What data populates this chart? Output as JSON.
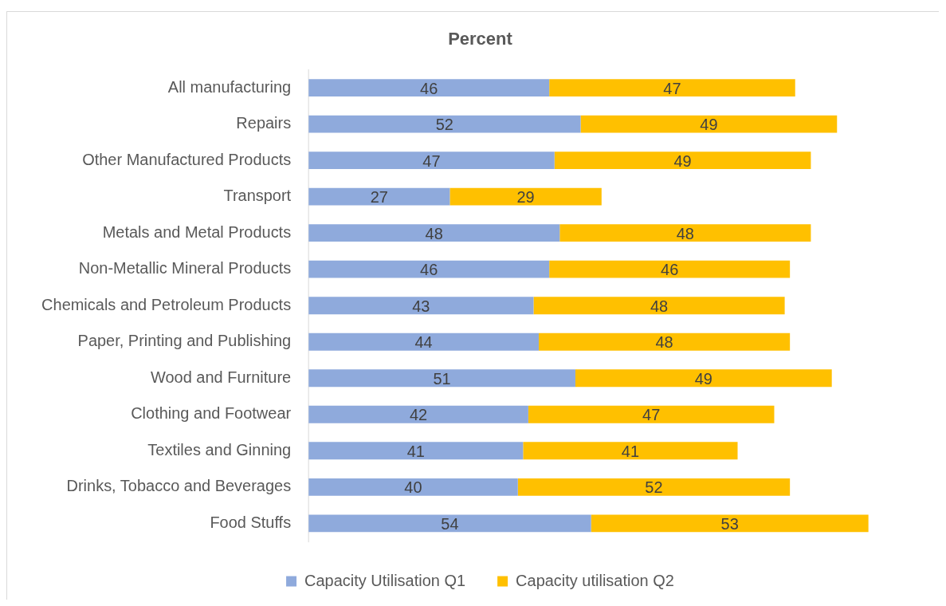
{
  "chart_data": {
    "type": "bar",
    "orientation": "horizontal",
    "stacked": true,
    "title": "Percent",
    "categories": [
      "All manufacturing",
      "Repairs",
      "Other Manufactured Products",
      "Transport",
      "Metals and Metal Products",
      "Non-Metallic Mineral Products",
      "Chemicals and Petroleum Products",
      "Paper, Printing and Publishing",
      "Wood and Furniture",
      "Clothing and Footwear",
      "Textiles and Ginning",
      "Drinks, Tobacco and Beverages",
      "Food Stuffs"
    ],
    "series": [
      {
        "name": "Capacity Utilisation Q1",
        "color": "#8faadc",
        "values": [
          46,
          52,
          47,
          27,
          48,
          46,
          43,
          44,
          51,
          42,
          41,
          40,
          54
        ]
      },
      {
        "name": "Capacity utilisation Q2",
        "color": "#ffc000",
        "values": [
          47,
          49,
          49,
          29,
          48,
          46,
          48,
          48,
          49,
          47,
          41,
          52,
          53
        ]
      }
    ],
    "data_labels": true,
    "legend": "bottom",
    "tick_labels": "y"
  }
}
